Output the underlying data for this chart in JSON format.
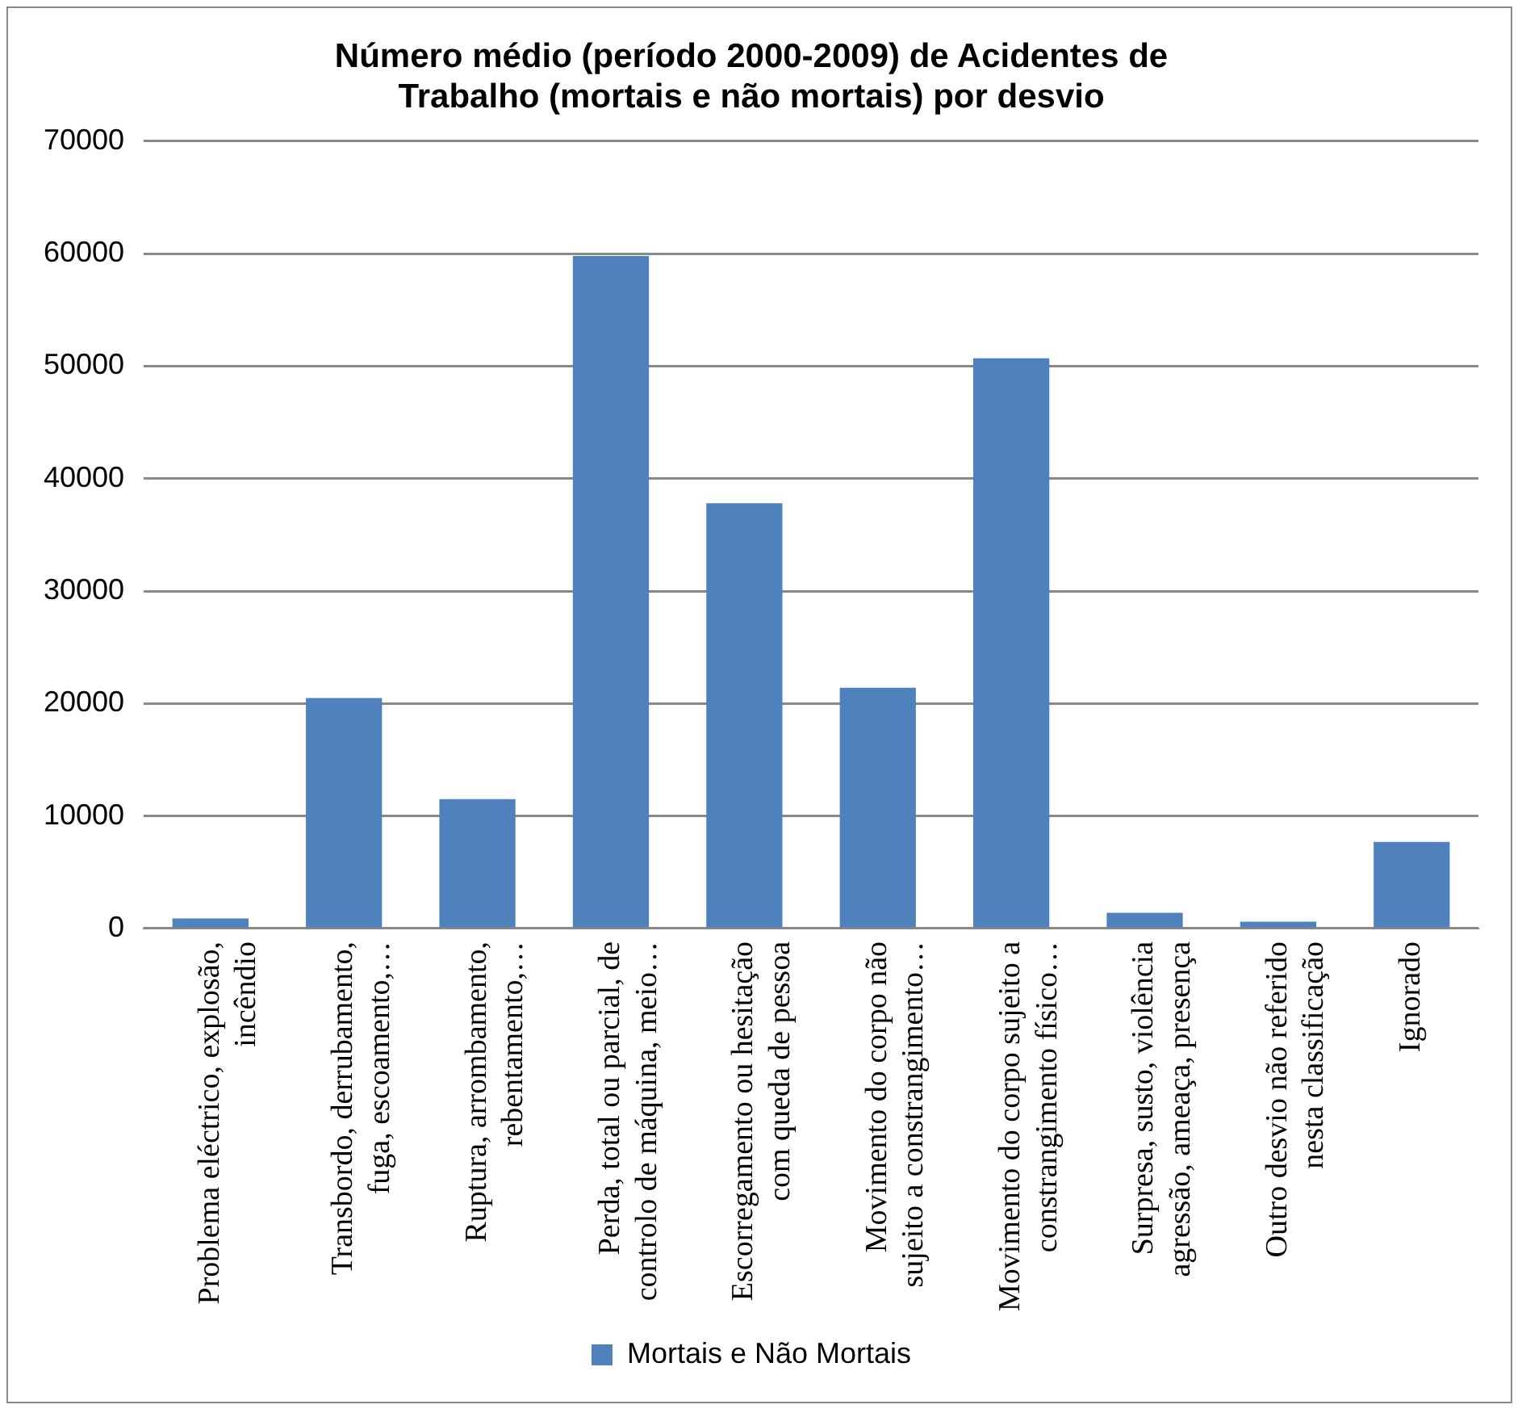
{
  "chart_data": {
    "type": "bar",
    "title": "Número médio (período 2000-2009) de Acidentes de Trabalho (mortais e não mortais) por desvio",
    "categories": [
      "Problema eléctrico, explosão, incêndio",
      "Transbordo, derrubamento, fuga, escoamento,…",
      "Ruptura, arrombamento, rebentamento,…",
      "Perda, total ou parcial, de controlo de máquina, meio…",
      "Escorregamento ou hesitação com queda de pessoa",
      "Movimento do corpo não sujeito a constrangimento…",
      "Movimento do corpo sujeito a constrangimento físico…",
      "Surpresa, susto, violência agressão, ameaça, presença",
      "Outro desvio não referido nesta classificação",
      "Ignorado"
    ],
    "series": [
      {
        "name": "Mortais e Não Mortais",
        "color": "#4f81bd",
        "values": [
          900,
          20500,
          11500,
          59800,
          37800,
          21400,
          50700,
          1400,
          600,
          7700
        ]
      }
    ],
    "ylim": [
      0,
      70000
    ],
    "yticks": [
      0,
      10000,
      20000,
      30000,
      40000,
      50000,
      60000,
      70000
    ],
    "grid": "y",
    "legend": "bottom"
  }
}
